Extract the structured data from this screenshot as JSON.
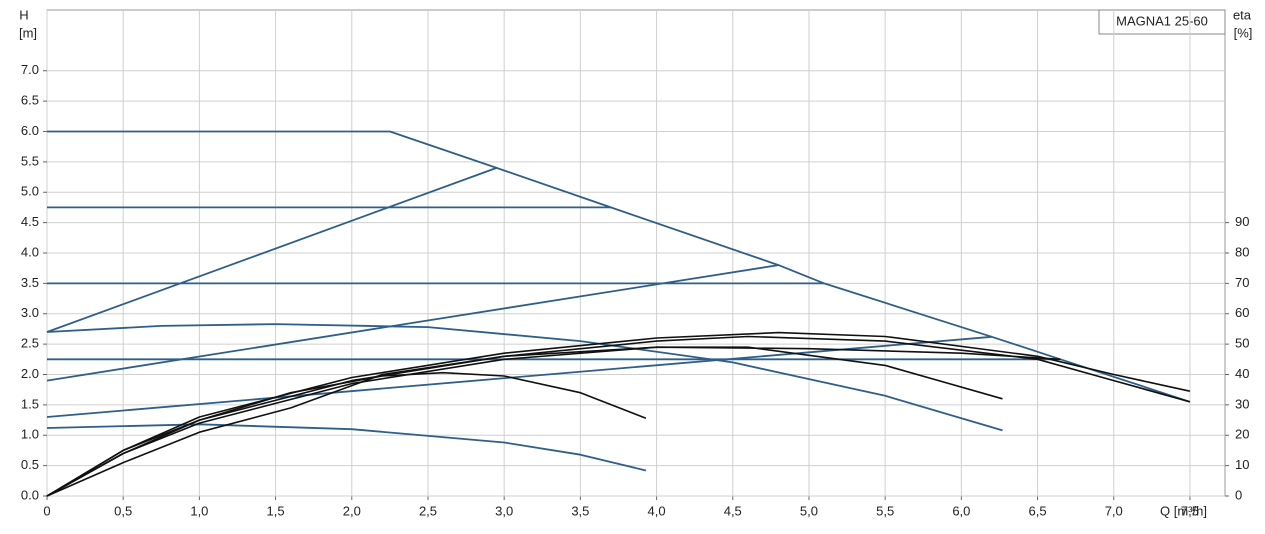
{
  "chart_data": {
    "type": "line",
    "legend_box": "MAGNA1 25-60",
    "y_label": "H",
    "y_unit": "[m]",
    "y2_label": "eta",
    "y2_unit": "[%]",
    "x_label": "Q [m³/h]",
    "xlim": [
      0,
      7.73
    ],
    "ylim": [
      0,
      8
    ],
    "y2lim": [
      0,
      160
    ],
    "grid": true,
    "xticks": [
      0,
      {
        "value": 0.5,
        "label": "0,5"
      },
      {
        "value": 1,
        "label": "1,0"
      },
      {
        "value": 1.5,
        "label": "1,5"
      },
      {
        "value": 2,
        "label": "2,0"
      },
      {
        "value": 2.5,
        "label": "2,5"
      },
      {
        "value": 3,
        "label": "3,0"
      },
      {
        "value": 3.5,
        "label": "3,5"
      },
      {
        "value": 4,
        "label": "4,0"
      },
      {
        "value": 4.5,
        "label": "4,5"
      },
      {
        "value": 5,
        "label": "5,0"
      },
      {
        "value": 5.5,
        "label": "5,5"
      },
      {
        "value": 6,
        "label": "6,0"
      },
      {
        "value": 6.5,
        "label": "6,5"
      },
      {
        "value": 7,
        "label": "7,0"
      },
      {
        "value": 7.5,
        "label": "7,5"
      }
    ],
    "yticks": [
      {
        "value": 0,
        "label": "0.0"
      },
      0.5,
      {
        "value": 1,
        "label": "1.0"
      },
      1.5,
      {
        "value": 2,
        "label": "2.0"
      },
      2.5,
      {
        "value": 3,
        "label": "3.0"
      },
      3.5,
      {
        "value": 4,
        "label": "4.0"
      },
      4.5,
      {
        "value": 5,
        "label": "5.0"
      },
      5.5,
      {
        "value": 6,
        "label": "6.0"
      },
      6.5,
      {
        "value": 7,
        "label": "7.0"
      }
    ],
    "y2ticks": [
      0,
      10,
      20,
      30,
      40,
      50,
      60,
      70,
      80,
      90
    ],
    "series": [
      {
        "color": "#2e5f8a",
        "x": [
          0,
          2.25,
          2.95,
          3.7,
          4.8,
          5.1,
          6.2,
          6.65,
          7.5
        ],
        "values": [
          6.0,
          6.0,
          5.4,
          4.75,
          3.8,
          3.5,
          2.62,
          2.25,
          1.55
        ]
      },
      {
        "color": "#2e5f8a",
        "x": [
          0,
          2.95
        ],
        "values": [
          2.7,
          5.4
        ]
      },
      {
        "color": "#2e5f8a",
        "x": [
          0,
          3.7
        ],
        "values": [
          4.75,
          4.75
        ]
      },
      {
        "color": "#2e5f8a",
        "x": [
          0,
          5.1
        ],
        "values": [
          3.5,
          3.5
        ]
      },
      {
        "color": "#2e5f8a",
        "x": [
          0,
          4.8
        ],
        "values": [
          1.9,
          3.8
        ]
      },
      {
        "color": "#2e5f8a",
        "x": [
          0,
          6.65
        ],
        "values": [
          2.25,
          2.25
        ]
      },
      {
        "color": "#2e5f8a",
        "x": [
          0,
          6.2
        ],
        "values": [
          1.3,
          2.62
        ]
      },
      {
        "color": "#2e5f8a",
        "x": [
          0,
          0.75,
          1.5,
          2.5,
          3.5,
          4.5,
          5.5,
          6.27
        ],
        "values": [
          2.7,
          2.8,
          2.83,
          2.78,
          2.55,
          2.2,
          1.65,
          1.08
        ]
      },
      {
        "color": "#2e5f8a",
        "x": [
          0,
          1,
          2,
          3,
          3.5,
          3.93
        ],
        "values": [
          1.12,
          1.18,
          1.1,
          0.88,
          0.68,
          0.42
        ]
      },
      {
        "color": "#111111",
        "axis": "y2",
        "x": [
          0,
          0.5,
          1,
          2,
          3,
          4,
          4.8,
          5.5,
          6.5,
          7,
          7.5
        ],
        "values": [
          0,
          15,
          26,
          39,
          47,
          52,
          53.8,
          52.5,
          46,
          40,
          34.5
        ]
      },
      {
        "color": "#111111",
        "axis": "y2",
        "x": [
          0,
          0.5,
          1,
          2,
          3,
          4,
          4.6,
          5.5,
          6.5,
          7,
          7.5
        ],
        "values": [
          0,
          15,
          25,
          38,
          46,
          51,
          52.5,
          51,
          45,
          38,
          31
        ]
      },
      {
        "color": "#111111",
        "axis": "y2",
        "x": [
          0,
          0.5,
          1,
          2,
          3,
          4,
          4.6,
          5.5,
          6.27
        ],
        "values": [
          0,
          14,
          24,
          37,
          45,
          49,
          49,
          43,
          32
        ]
      },
      {
        "color": "#111111",
        "axis": "y2",
        "x": [
          0,
          0.5,
          1,
          1.6,
          2.2,
          2.6,
          3,
          3.5,
          3.93
        ],
        "values": [
          0,
          14,
          25,
          34,
          39.5,
          40.6,
          39.5,
          34,
          25.6
        ]
      },
      {
        "color": "#111111",
        "axis": "y2",
        "x": [
          0,
          0.5,
          1,
          1.6,
          2.2,
          3,
          4,
          5,
          6,
          6.65
        ],
        "values": [
          0,
          11,
          21,
          29,
          40,
          46,
          49,
          48.5,
          47,
          45
        ]
      }
    ]
  }
}
